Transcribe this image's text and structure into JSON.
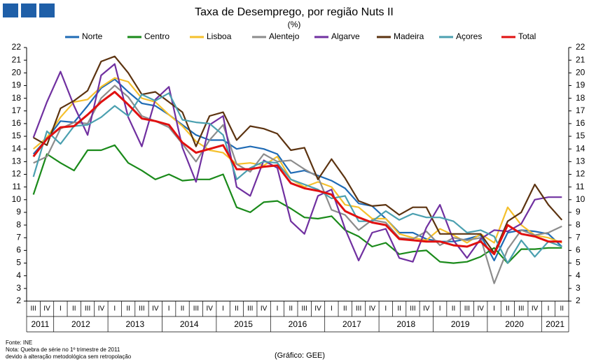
{
  "chart_data": {
    "type": "line",
    "title": "Taxa de Desemprego, por região Nuts II",
    "subtitle": "(%)",
    "source": "Fonte: INE",
    "notes": [
      "Nota: Quebra de série no 1º trimestre de 2011",
      "devido à alteração metodológica sem retropolação"
    ],
    "credit": "(Gráfico: GEE)",
    "categories": [
      "III",
      "IV",
      "I",
      "II",
      "III",
      "IV",
      "I",
      "II",
      "III",
      "IV",
      "I",
      "II",
      "III",
      "IV",
      "I",
      "II",
      "III",
      "IV",
      "I",
      "II",
      "III",
      "IV",
      "I",
      "II",
      "III",
      "IV",
      "I",
      "II",
      "III",
      "IV",
      "I",
      "II",
      "III",
      "IV",
      "I",
      "II",
      "III",
      "IV",
      "I",
      "II"
    ],
    "year_labels": [
      "2011",
      "2012",
      "2013",
      "2014",
      "2015",
      "2016",
      "2017",
      "2018",
      "2019",
      "2020",
      "2021"
    ],
    "ylim": [
      2,
      22
    ],
    "yticks": [
      2,
      3,
      4,
      5,
      6,
      7,
      8,
      9,
      10,
      11,
      12,
      13,
      14,
      15,
      16,
      17,
      18,
      19,
      20,
      21,
      22
    ],
    "grid": false,
    "series": [
      {
        "name": "Norte",
        "color": "#1f6bb5",
        "values": [
          13.6,
          14.8,
          16.2,
          16.1,
          17.4,
          18.8,
          19.5,
          18.5,
          17.6,
          17.4,
          16.7,
          15.9,
          15.1,
          14.7,
          14.7,
          14.0,
          14.2,
          14.0,
          13.6,
          12.1,
          12.3,
          11.9,
          11.5,
          10.9,
          9.7,
          9.5,
          8.5,
          7.4,
          7.4,
          6.9,
          6.7,
          6.7,
          6.9,
          7.2,
          5.2,
          7.4,
          7.6,
          7.5,
          7.3,
          6.3
        ]
      },
      {
        "name": "Centro",
        "color": "#1a8a1a",
        "values": [
          10.4,
          13.6,
          12.9,
          12.3,
          13.9,
          13.9,
          14.3,
          12.9,
          12.3,
          11.6,
          12.0,
          11.5,
          11.6,
          11.6,
          12.0,
          9.4,
          9.0,
          9.8,
          9.9,
          9.3,
          8.6,
          8.5,
          8.7,
          7.6,
          7.1,
          6.3,
          6.6,
          5.7,
          5.9,
          6.0,
          5.1,
          5.0,
          5.1,
          5.5,
          6.2,
          5.0,
          6.1,
          6.1,
          6.2,
          6.2
        ]
      },
      {
        "name": "Lisboa",
        "color": "#f5c02c",
        "values": [
          14.0,
          14.9,
          16.5,
          17.7,
          17.9,
          18.9,
          19.6,
          19.3,
          18.0,
          17.7,
          16.7,
          15.8,
          14.6,
          13.9,
          13.7,
          12.8,
          12.9,
          12.7,
          13.4,
          11.6,
          11.0,
          11.4,
          11.0,
          9.6,
          9.4,
          8.5,
          8.5,
          7.3,
          7.0,
          6.8,
          7.7,
          7.2,
          6.6,
          7.3,
          6.6,
          9.4,
          8.0,
          7.2,
          7.0,
          6.6
        ]
      },
      {
        "name": "Alentejo",
        "color": "#8c8c8c",
        "values": [
          12.9,
          13.4,
          15.6,
          16.1,
          16.0,
          18.0,
          19.0,
          18.1,
          16.6,
          16.2,
          15.7,
          14.4,
          13.0,
          14.7,
          15.9,
          12.8,
          12.2,
          13.6,
          13.0,
          13.1,
          12.4,
          11.8,
          9.2,
          8.8,
          7.6,
          8.4,
          8.2,
          7.0,
          6.9,
          7.5,
          6.4,
          7.0,
          6.8,
          7.0,
          3.4,
          6.1,
          7.6,
          7.2,
          7.4,
          7.9
        ]
      },
      {
        "name": "Algarve",
        "color": "#7030a0",
        "values": [
          14.9,
          17.7,
          20.1,
          17.4,
          15.1,
          19.8,
          20.7,
          16.5,
          14.2,
          17.9,
          18.9,
          14.1,
          11.4,
          15.9,
          16.6,
          11.0,
          10.3,
          13.1,
          12.5,
          8.3,
          7.3,
          10.3,
          10.8,
          7.7,
          5.2,
          7.4,
          7.7,
          5.4,
          5.1,
          7.8,
          9.6,
          6.8,
          5.4,
          6.9,
          7.6,
          7.5,
          8.1,
          10.0,
          10.2,
          10.2
        ]
      },
      {
        "name": "Madeira",
        "color": "#5c3310",
        "values": [
          14.9,
          14.3,
          17.2,
          17.8,
          18.6,
          20.9,
          21.3,
          20.0,
          18.3,
          18.5,
          17.7,
          16.9,
          14.2,
          16.6,
          16.9,
          14.7,
          15.8,
          15.6,
          15.2,
          13.9,
          14.1,
          11.6,
          13.2,
          11.7,
          9.9,
          9.5,
          9.6,
          8.8,
          9.4,
          9.4,
          7.3,
          7.3,
          7.3,
          7.3,
          5.8,
          8.3,
          9.0,
          11.2,
          9.6,
          8.4
        ]
      },
      {
        "name": "Açores",
        "color": "#4ba0b0",
        "values": [
          11.8,
          15.4,
          14.4,
          15.8,
          15.9,
          16.5,
          17.4,
          16.6,
          18.3,
          17.8,
          18.4,
          16.3,
          16.1,
          16.0,
          15.1,
          11.6,
          12.5,
          13.0,
          12.9,
          11.6,
          11.2,
          10.8,
          10.1,
          10.3,
          8.3,
          8.3,
          9.1,
          8.4,
          8.9,
          8.6,
          8.6,
          8.3,
          7.4,
          7.6,
          7.1,
          5.0,
          6.8,
          5.5,
          6.7,
          6.3
        ]
      },
      {
        "name": "Total",
        "color": "#e01010",
        "values": [
          13.4,
          14.8,
          15.7,
          15.8,
          16.7,
          17.7,
          18.5,
          17.5,
          16.4,
          16.2,
          15.9,
          14.5,
          13.7,
          14.0,
          14.3,
          12.4,
          12.4,
          12.6,
          12.7,
          11.3,
          10.9,
          10.7,
          10.4,
          9.1,
          8.6,
          8.2,
          8.0,
          6.9,
          6.8,
          6.7,
          6.7,
          6.4,
          6.3,
          6.7,
          5.7,
          8.0,
          7.3,
          7.1,
          6.7,
          6.7
        ]
      }
    ]
  }
}
